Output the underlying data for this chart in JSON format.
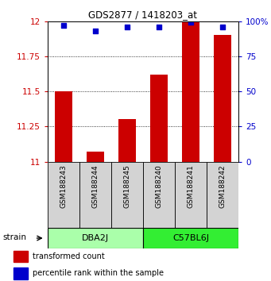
{
  "title": "GDS2877 / 1418203_at",
  "samples": [
    "GSM188243",
    "GSM188244",
    "GSM188245",
    "GSM188240",
    "GSM188241",
    "GSM188242"
  ],
  "red_values": [
    11.5,
    11.07,
    11.3,
    11.62,
    12.0,
    11.9
  ],
  "blue_values": [
    97,
    93,
    96,
    96,
    99,
    96
  ],
  "ylim_left": [
    11.0,
    12.0
  ],
  "ylim_right": [
    0,
    100
  ],
  "left_ticks": [
    11.0,
    11.25,
    11.5,
    11.75,
    12.0
  ],
  "right_ticks": [
    0,
    25,
    50,
    75,
    100
  ],
  "left_tick_labels": [
    "11",
    "11.25",
    "11.5",
    "11.75",
    "12"
  ],
  "right_tick_labels": [
    "0",
    "25",
    "50",
    "75",
    "100%"
  ],
  "groups": [
    {
      "label": "DBA2J",
      "indices": [
        0,
        1,
        2
      ],
      "color": "#aaffaa"
    },
    {
      "label": "C57BL6J",
      "indices": [
        3,
        4,
        5
      ],
      "color": "#33ee33"
    }
  ],
  "bar_color": "#CC0000",
  "dot_color": "#0000CC",
  "sample_bg_color": "#D3D3D3",
  "left_axis_color": "#CC0000",
  "right_axis_color": "#0000CC",
  "legend_red_label": "transformed count",
  "legend_blue_label": "percentile rank within the sample",
  "strain_label": "strain",
  "bar_width": 0.55
}
